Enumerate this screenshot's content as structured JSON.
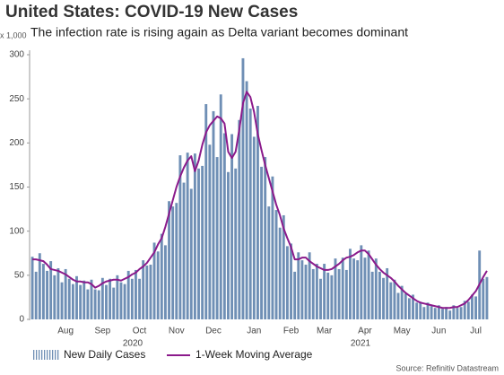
{
  "chart_data": {
    "type": "bar",
    "title": "United States: COVID-19 New Cases",
    "subtitle": "The infection rate is rising again as Delta variant becomes dominant",
    "y_unit": "x 1,000",
    "source": "Source: Refinitiv Datastream",
    "year_labels": [
      "2020",
      "2021"
    ],
    "categories": [
      null,
      null,
      null,
      null,
      null,
      null,
      null,
      null,
      null,
      "Aug",
      null,
      null,
      null,
      null,
      null,
      null,
      null,
      null,
      null,
      "Sep",
      null,
      null,
      null,
      null,
      null,
      null,
      null,
      null,
      null,
      "Oct",
      null,
      null,
      null,
      null,
      null,
      null,
      null,
      null,
      null,
      "Nov",
      null,
      null,
      null,
      null,
      null,
      null,
      null,
      null,
      null,
      "Dec",
      null,
      null,
      null,
      null,
      null,
      null,
      null,
      null,
      null,
      null,
      "Jan",
      null,
      null,
      null,
      null,
      null,
      null,
      null,
      null,
      null,
      "Feb",
      null,
      null,
      null,
      null,
      null,
      null,
      null,
      null,
      "Mar",
      null,
      null,
      null,
      null,
      null,
      null,
      null,
      null,
      null,
      null,
      "Apr",
      null,
      null,
      null,
      null,
      null,
      null,
      null,
      null,
      null,
      "May",
      null,
      null,
      null,
      null,
      null,
      null,
      null,
      null,
      null,
      "Jun",
      null,
      null,
      null,
      null,
      null,
      null,
      null,
      null,
      null,
      "Jul",
      null,
      null,
      null
    ],
    "series": [
      {
        "name": "New Daily Cases",
        "type": "bar",
        "color": "#6f8fb5",
        "values": [
          71,
          54,
          75,
          63,
          55,
          66,
          50,
          58,
          42,
          57,
          46,
          40,
          49,
          39,
          44,
          34,
          45,
          34,
          33,
          47,
          39,
          46,
          36,
          50,
          42,
          40,
          55,
          46,
          56,
          46,
          67,
          61,
          62,
          87,
          77,
          97,
          84,
          134,
          128,
          132,
          186,
          155,
          189,
          148,
          188,
          171,
          174,
          244,
          198,
          236,
          184,
          255,
          211,
          167,
          210,
          171,
          226,
          296,
          270,
          239,
          207,
          242,
          173,
          184,
          128,
          162,
          124,
          104,
          118,
          83,
          86,
          54,
          76,
          67,
          62,
          76,
          57,
          63,
          46,
          63,
          53,
          50,
          69,
          57,
          70,
          56,
          80,
          69,
          67,
          84,
          70,
          78,
          54,
          69,
          54,
          47,
          58,
          42,
          45,
          30,
          38,
          29,
          24,
          28,
          19,
          20,
          14,
          19,
          15,
          13,
          16,
          12,
          14,
          10,
          16,
          13,
          14,
          21,
          20,
          28,
          26,
          78,
          46,
          48
        ]
      },
      {
        "name": "1-Week Moving Average",
        "type": "line",
        "color": "#8b1a8b",
        "values": [
          68,
          68,
          67,
          66,
          62,
          57,
          56,
          55,
          53,
          51,
          48,
          45,
          43,
          43,
          42,
          42,
          40,
          36,
          38,
          41,
          43,
          44,
          45,
          45,
          44,
          46,
          48,
          51,
          53,
          57,
          60,
          64,
          70,
          76,
          85,
          92,
          105,
          120,
          135,
          150,
          162,
          172,
          180,
          185,
          168,
          180,
          198,
          212,
          220,
          225,
          230,
          228,
          222,
          190,
          183,
          190,
          215,
          245,
          258,
          252,
          235,
          210,
          192,
          175,
          160,
          145,
          130,
          118,
          103,
          92,
          82,
          68,
          68,
          70,
          70,
          66,
          63,
          60,
          58,
          56,
          56,
          57,
          60,
          63,
          67,
          70,
          71,
          73,
          76,
          78,
          78,
          74,
          68,
          62,
          57,
          53,
          50,
          47,
          43,
          38,
          34,
          30,
          27,
          24,
          21,
          19,
          18,
          17,
          16,
          15,
          14,
          13,
          13,
          13,
          14,
          14,
          16,
          18,
          22,
          27,
          32,
          40,
          48,
          55
        ]
      }
    ],
    "ylim": [
      0,
      300
    ],
    "yticks": [
      0,
      50,
      100,
      150,
      200,
      250,
      300
    ]
  }
}
